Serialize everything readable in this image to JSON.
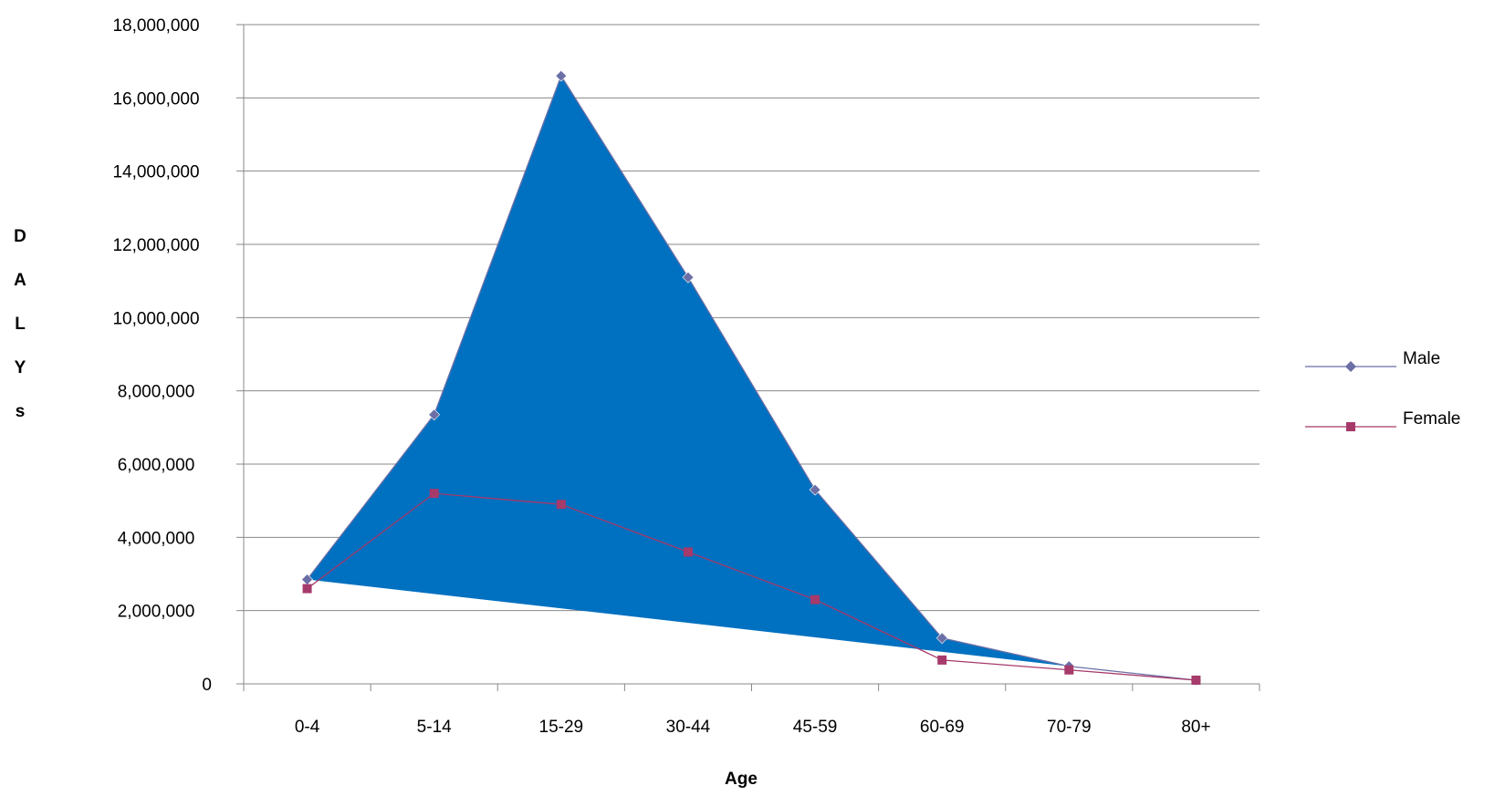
{
  "chart_data": {
    "type": "line",
    "title": "",
    "xlabel": "Age",
    "ylabel": "DALYs",
    "categories": [
      "0-4",
      "5-14",
      "15-29",
      "30-44",
      "45-59",
      "60-69",
      "70-79",
      "80+"
    ],
    "series": [
      {
        "name": "Male",
        "values": [
          2850000,
          7350000,
          16600000,
          11100000,
          5300000,
          1250000,
          480000,
          100000
        ],
        "color": "#6b6fa6"
      },
      {
        "name": "Female",
        "values": [
          2600000,
          5200000,
          4900000,
          3600000,
          2300000,
          650000,
          380000,
          100000
        ],
        "color": "#a63a6b"
      }
    ],
    "area_fill_color": "#0070c0",
    "ylim": [
      0,
      18000000
    ],
    "y_ticks": [
      {
        "value": 0,
        "label": "0"
      },
      {
        "value": 2000000,
        "label": "2,000,000"
      },
      {
        "value": 4000000,
        "label": "4,000,000"
      },
      {
        "value": 6000000,
        "label": "6,000,000"
      },
      {
        "value": 8000000,
        "label": "8,000,000"
      },
      {
        "value": 10000000,
        "label": "10,000,000"
      },
      {
        "value": 12000000,
        "label": "12,000,000"
      },
      {
        "value": 14000000,
        "label": "14,000,000"
      },
      {
        "value": 16000000,
        "label": "16,000,000"
      },
      {
        "value": 18000000,
        "label": "18,000,000"
      }
    ],
    "grid": true,
    "legend_position": "right",
    "gridline_color": "#888888"
  }
}
